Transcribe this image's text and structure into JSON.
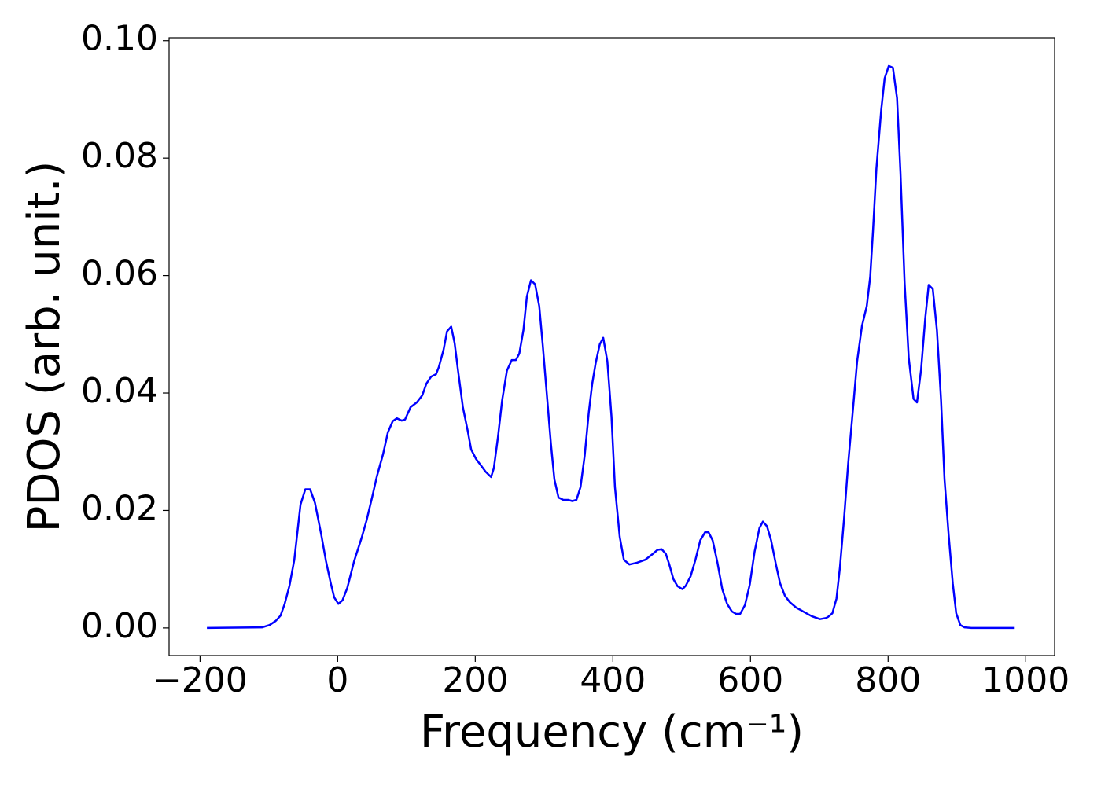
{
  "chart_data": {
    "type": "line",
    "x_label": "Frequency (cm⁻¹)",
    "y_label": "PDOS (arb. unit.)",
    "color": "#0000ff",
    "x": [
      -190,
      -110,
      -99,
      -90,
      -83,
      -77,
      -70,
      -63,
      -54,
      -47,
      -40,
      -33,
      -24,
      -17,
      -10,
      -5,
      1,
      7,
      14,
      24,
      35,
      42,
      50,
      57,
      66,
      73,
      80,
      86,
      93,
      98,
      106,
      115,
      123,
      129,
      136,
      143,
      147,
      154,
      159,
      165,
      170,
      175,
      182,
      189,
      194,
      201,
      208,
      215,
      223,
      227,
      233,
      239,
      246,
      253,
      259,
      264,
      270,
      275,
      281,
      287,
      293,
      298,
      304,
      310,
      315,
      321,
      328,
      335,
      341,
      347,
      353,
      359,
      365,
      370,
      375,
      381,
      386,
      392,
      398,
      403,
      410,
      416,
      424,
      435,
      447,
      458,
      465,
      471,
      477,
      482,
      488,
      494,
      501,
      506,
      513,
      520,
      527,
      534,
      539,
      545,
      552,
      559,
      566,
      573,
      579,
      585,
      592,
      599,
      606,
      613,
      618,
      624,
      630,
      637,
      643,
      650,
      657,
      666,
      678,
      689,
      701,
      710,
      713,
      719,
      725,
      730,
      736,
      742,
      749,
      755,
      762,
      769,
      774,
      778,
      783,
      790,
      795,
      801,
      807,
      813,
      818,
      824,
      830,
      837,
      842,
      848,
      854,
      859,
      865,
      871,
      877,
      882,
      888,
      894,
      899,
      905,
      911,
      921,
      984
    ],
    "values": [
      0,
      0.0001,
      0.0005,
      0.0012,
      0.0021,
      0.0041,
      0.0072,
      0.0116,
      0.021,
      0.0236,
      0.0236,
      0.0213,
      0.016,
      0.0114,
      0.0076,
      0.0052,
      0.0041,
      0.0047,
      0.0068,
      0.0114,
      0.0154,
      0.0183,
      0.0222,
      0.0258,
      0.0296,
      0.0333,
      0.0352,
      0.0357,
      0.0353,
      0.0355,
      0.0376,
      0.0384,
      0.0396,
      0.0416,
      0.0428,
      0.0432,
      0.0444,
      0.0474,
      0.0505,
      0.0513,
      0.0485,
      0.0438,
      0.0376,
      0.0336,
      0.0304,
      0.0288,
      0.0277,
      0.0266,
      0.0257,
      0.0272,
      0.0325,
      0.0387,
      0.0438,
      0.0456,
      0.0456,
      0.0467,
      0.0507,
      0.0564,
      0.0592,
      0.0585,
      0.0548,
      0.0483,
      0.0398,
      0.0313,
      0.0253,
      0.0222,
      0.0218,
      0.0218,
      0.0216,
      0.0218,
      0.024,
      0.0293,
      0.0367,
      0.0416,
      0.0451,
      0.0483,
      0.0494,
      0.0454,
      0.036,
      0.024,
      0.0155,
      0.0116,
      0.0108,
      0.0111,
      0.0116,
      0.0126,
      0.0133,
      0.0134,
      0.0126,
      0.0108,
      0.0083,
      0.0071,
      0.0066,
      0.0072,
      0.0088,
      0.0116,
      0.0149,
      0.0163,
      0.0163,
      0.0149,
      0.0111,
      0.0066,
      0.0041,
      0.0028,
      0.0024,
      0.0024,
      0.0039,
      0.0074,
      0.013,
      0.017,
      0.0181,
      0.0173,
      0.0149,
      0.0108,
      0.0076,
      0.0055,
      0.0044,
      0.0035,
      0.0027,
      0.002,
      0.0015,
      0.0017,
      0.0019,
      0.0025,
      0.005,
      0.0103,
      0.0186,
      0.028,
      0.0373,
      0.0454,
      0.0514,
      0.0548,
      0.0598,
      0.0675,
      0.0782,
      0.0882,
      0.0936,
      0.0957,
      0.0954,
      0.0902,
      0.0775,
      0.0588,
      0.046,
      0.039,
      0.0384,
      0.044,
      0.0527,
      0.0584,
      0.0577,
      0.0507,
      0.0387,
      0.0253,
      0.0159,
      0.0076,
      0.0025,
      0.0005,
      0.0001,
      0,
      0
    ],
    "xlim": [
      -245,
      1042
    ],
    "ylim": [
      -0.0047,
      0.1005
    ],
    "xticks": [
      {
        "value": -200,
        "label": "−200"
      },
      0,
      200,
      400,
      600,
      800,
      1000
    ],
    "yticks": [
      {
        "value": 0,
        "label": "0.00"
      },
      {
        "value": 0.02,
        "label": "0.02"
      },
      {
        "value": 0.04,
        "label": "0.04"
      },
      {
        "value": 0.06,
        "label": "0.06"
      },
      {
        "value": 0.08,
        "label": "0.08"
      },
      {
        "value": 0.1,
        "label": "0.10"
      }
    ],
    "grid": false
  }
}
